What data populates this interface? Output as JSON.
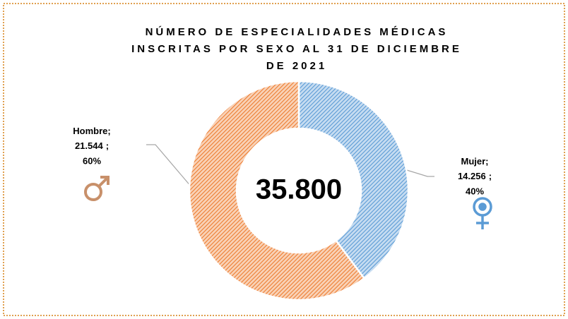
{
  "chart_data": {
    "type": "donut",
    "title": [
      "NÚMERO DE ESPECIALIDADES MÉDICAS",
      "INSCRITAS POR SEXO AL 31 DE DICIEMBRE",
      "DE 2021"
    ],
    "categories": [
      "Mujer",
      "Hombre"
    ],
    "values": [
      14256,
      21544
    ],
    "value_labels": [
      "14.256",
      "21.544"
    ],
    "percentages": [
      40,
      60
    ],
    "percentage_labels": [
      "40%",
      "60%"
    ],
    "label_separator": ";",
    "colors": [
      "#5b9bd5",
      "#ed7d31"
    ],
    "total": 35800,
    "total_label": "35.800"
  }
}
